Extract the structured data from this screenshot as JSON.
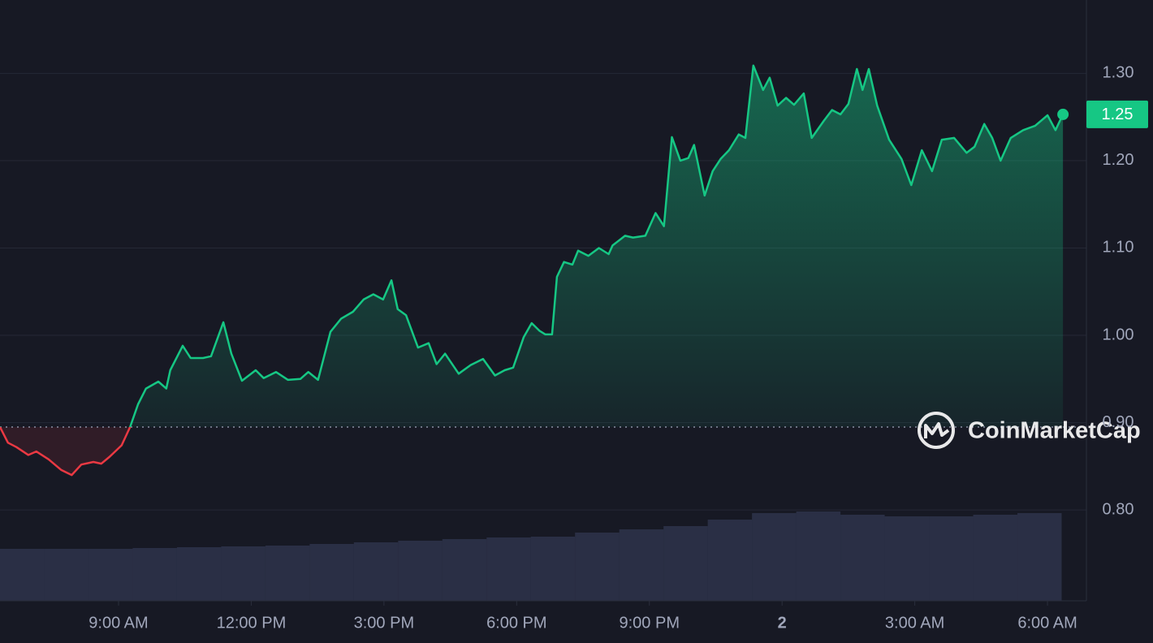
{
  "chart_data": {
    "type": "line",
    "watermark": "CoinMarketCap",
    "x": [
      6.32,
      6.5,
      6.69,
      6.96,
      7.14,
      7.42,
      7.7,
      7.94,
      8.16,
      8.43,
      8.61,
      8.8,
      9.07,
      9.26,
      9.44,
      9.62,
      9.9,
      10.08,
      10.17,
      10.45,
      10.63,
      10.91,
      11.09,
      11.37,
      11.55,
      11.79,
      12.1,
      12.28,
      12.56,
      12.83,
      13.11,
      13.29,
      13.51,
      13.79,
      14.03,
      14.3,
      14.54,
      14.76,
      14.98,
      15.17,
      15.31,
      15.5,
      15.77,
      16.01,
      16.19,
      16.38,
      16.69,
      16.96,
      17.24,
      17.51,
      17.73,
      17.92,
      18.16,
      18.34,
      18.52,
      18.65,
      18.8,
      18.91,
      19.07,
      19.26,
      19.39,
      19.62,
      19.86,
      20.08,
      20.17,
      20.45,
      20.63,
      20.91,
      21.14,
      21.33,
      21.51,
      21.7,
      21.88,
      22.01,
      22.25,
      22.43,
      22.61,
      22.8,
      23.02,
      23.17,
      23.35,
      23.57,
      23.72,
      23.9,
      24.09,
      24.27,
      24.49,
      24.67,
      24.95,
      25.13,
      25.32,
      25.5,
      25.69,
      25.82,
      25.96,
      26.15,
      26.42,
      26.7,
      26.92,
      27.16,
      27.39,
      27.61,
      27.89,
      28.17,
      28.35,
      28.57,
      28.75,
      28.94,
      29.17,
      29.45,
      29.72,
      30.0,
      30.18,
      30.35
    ],
    "series": [
      {
        "values": [
          0.895,
          0.877,
          0.872,
          0.863,
          0.867,
          0.858,
          0.846,
          0.84,
          0.852,
          0.855,
          0.853,
          0.861,
          0.874,
          0.895,
          0.921,
          0.939,
          0.947,
          0.939,
          0.96,
          0.988,
          0.974,
          0.974,
          0.976,
          1.015,
          0.979,
          0.948,
          0.96,
          0.951,
          0.958,
          0.949,
          0.95,
          0.958,
          0.949,
          1.004,
          1.019,
          1.027,
          1.041,
          1.047,
          1.041,
          1.063,
          1.03,
          1.023,
          0.986,
          0.991,
          0.967,
          0.979,
          0.956,
          0.966,
          0.973,
          0.954,
          0.96,
          0.963,
          0.998,
          1.014,
          1.005,
          1.001,
          1.001,
          1.067,
          1.084,
          1.081,
          1.097,
          1.091,
          1.1,
          1.093,
          1.103,
          1.114,
          1.112,
          1.114,
          1.14,
          1.125,
          1.227,
          1.2,
          1.203,
          1.218,
          1.16,
          1.188,
          1.202,
          1.212,
          1.23,
          1.226,
          1.309,
          1.281,
          1.295,
          1.263,
          1.272,
          1.264,
          1.277,
          1.226,
          1.246,
          1.258,
          1.253,
          1.265,
          1.305,
          1.281,
          1.305,
          1.263,
          1.224,
          1.202,
          1.172,
          1.212,
          1.188,
          1.224,
          1.226,
          1.209,
          1.216,
          1.242,
          1.226,
          1.2,
          1.226,
          1.235,
          1.24,
          1.252,
          1.235,
          1.253
        ],
        "up_color": "#16c784",
        "down_color": "#ea3943"
      }
    ],
    "baseline": 0.895,
    "current_price": {
      "value": 1.253,
      "label": "1.25"
    },
    "volume": {
      "x": [
        6.32,
        7.32,
        8.32,
        9.32,
        10.32,
        11.32,
        12.32,
        13.32,
        14.32,
        15.32,
        16.32,
        17.32,
        18.32,
        19.32,
        20.32,
        21.32,
        22.32,
        23.32,
        24.32,
        25.32,
        26.32,
        27.32,
        28.32,
        29.32
      ],
      "width": 1,
      "values": [
        64,
        64,
        64,
        65,
        66,
        67,
        68,
        70,
        72,
        74,
        76,
        78,
        79,
        84,
        88,
        92,
        100,
        108,
        110,
        106,
        104,
        104,
        106,
        108
      ],
      "lim": [
        0,
        120
      ],
      "color": "#3a4260"
    },
    "xlim": [
      6.32,
      30.88
    ],
    "xticks": [
      {
        "value": 9,
        "label": "9:00 AM"
      },
      {
        "value": 12,
        "label": "12:00 PM"
      },
      {
        "value": 15,
        "label": "3:00 PM"
      },
      {
        "value": 18,
        "label": "6:00 PM"
      },
      {
        "value": 21,
        "label": "9:00 PM"
      },
      {
        "value": 24,
        "label": "2"
      },
      {
        "value": 27,
        "label": "3:00 AM"
      },
      {
        "value": 30,
        "label": "6:00 AM"
      }
    ],
    "ylim": [
      0.696,
      1.384
    ],
    "yticks": [
      {
        "value": 0.8,
        "label": "0.80"
      },
      {
        "value": 0.9,
        "label": "0.90"
      },
      {
        "value": 1.0,
        "label": "1.00"
      },
      {
        "value": 1.1,
        "label": "1.10"
      },
      {
        "value": 1.2,
        "label": "1.20"
      },
      {
        "value": 1.3,
        "label": "1.30"
      }
    ],
    "grid": true
  }
}
